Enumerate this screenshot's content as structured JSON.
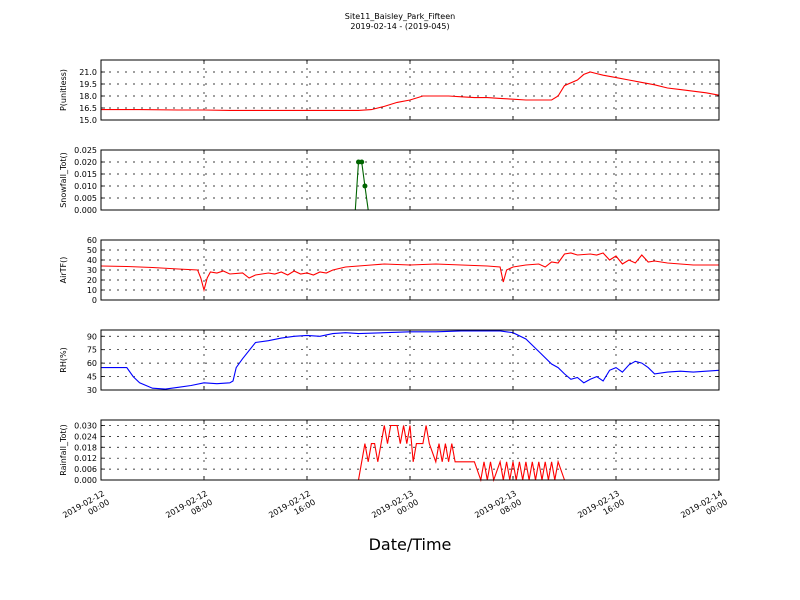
{
  "title": {
    "line1": "Site11_Baisley_Park_Fifteen",
    "line2": "2019-02-14 - (2019-045)"
  },
  "xlabel": "Date/Time",
  "x_ticks": [
    {
      "line1": "2019-02-12",
      "line2": "00:00"
    },
    {
      "line1": "2019-02-12",
      "line2": "08:00"
    },
    {
      "line1": "2019-02-12",
      "line2": "16:00"
    },
    {
      "line1": "2019-02-13",
      "line2": "00:00"
    },
    {
      "line1": "2019-02-13",
      "line2": "08:00"
    },
    {
      "line1": "2019-02-13",
      "line2": "16:00"
    },
    {
      "line1": "2019-02-14",
      "line2": "00:00"
    }
  ],
  "chart_data": [
    {
      "type": "line",
      "ylabel": "P(unitless)",
      "color": "#ff0000",
      "ylim": [
        15.0,
        22.5
      ],
      "yticks": [
        "15.0",
        "16.5",
        "18.0",
        "19.5",
        "21.0"
      ],
      "grid": true,
      "markers": false,
      "series": [
        {
          "values": [
            [
              0,
              16.3
            ],
            [
              3,
              16.3
            ],
            [
              6,
              16.25
            ],
            [
              8,
              16.25
            ],
            [
              10,
              16.2
            ],
            [
              12,
              16.2
            ],
            [
              14,
              16.2
            ],
            [
              16,
              16.2
            ],
            [
              18,
              16.2
            ],
            [
              20,
              16.2
            ],
            [
              21,
              16.3
            ],
            [
              22,
              16.7
            ],
            [
              23,
              17.2
            ],
            [
              24,
              17.5
            ],
            [
              25,
              18.0
            ],
            [
              26,
              18.0
            ],
            [
              27,
              18.0
            ],
            [
              28,
              17.9
            ],
            [
              29,
              17.8
            ],
            [
              30,
              17.8
            ],
            [
              31,
              17.7
            ],
            [
              32,
              17.6
            ],
            [
              33,
              17.5
            ],
            [
              34,
              17.5
            ],
            [
              35,
              17.5
            ],
            [
              35.5,
              18.0
            ],
            [
              36,
              19.3
            ],
            [
              37,
              20.0
            ],
            [
              37.5,
              20.7
            ],
            [
              38,
              21.0
            ],
            [
              38.5,
              20.8
            ],
            [
              39,
              20.6
            ],
            [
              40,
              20.3
            ],
            [
              41,
              20.0
            ],
            [
              42,
              19.7
            ],
            [
              43,
              19.4
            ],
            [
              44,
              19.0
            ],
            [
              45,
              18.8
            ],
            [
              46,
              18.6
            ],
            [
              47,
              18.4
            ],
            [
              48,
              18.1
            ]
          ]
        }
      ]
    },
    {
      "type": "line",
      "ylabel": "Snowfall_Tot()",
      "color": "#006400",
      "ylim": [
        0,
        0.025
      ],
      "yticks": [
        "0.000",
        "0.005",
        "0.010",
        "0.015",
        "0.020",
        "0.025"
      ],
      "grid": true,
      "markers": true,
      "series": [
        {
          "values": [
            [
              0,
              0
            ],
            [
              19.75,
              0
            ],
            [
              20,
              0.02
            ],
            [
              20.25,
              0.02
            ],
            [
              20.5,
              0.01
            ],
            [
              20.75,
              0
            ],
            [
              48,
              0
            ]
          ]
        }
      ]
    },
    {
      "type": "line",
      "ylabel": "AirTF()",
      "color": "#ff0000",
      "ylim": [
        0,
        60
      ],
      "yticks": [
        "0",
        "10",
        "20",
        "30",
        "40",
        "50",
        "60"
      ],
      "grid": true,
      "markers": false,
      "series": [
        {
          "values": [
            [
              0,
              34
            ],
            [
              2,
              33.5
            ],
            [
              4,
              32.5
            ],
            [
              6,
              31
            ],
            [
              7.5,
              30
            ],
            [
              7.75,
              22
            ],
            [
              8,
              10
            ],
            [
              8.25,
              22
            ],
            [
              8.5,
              28
            ],
            [
              9,
              27
            ],
            [
              9.5,
              29
            ],
            [
              10,
              26
            ],
            [
              11,
              27
            ],
            [
              11.5,
              22
            ],
            [
              12,
              25
            ],
            [
              13,
              27
            ],
            [
              13.5,
              26
            ],
            [
              14,
              28
            ],
            [
              14.5,
              25
            ],
            [
              15,
              29
            ],
            [
              15.5,
              26
            ],
            [
              16,
              27
            ],
            [
              16.5,
              25
            ],
            [
              17,
              28
            ],
            [
              17.5,
              27
            ],
            [
              18,
              30
            ],
            [
              19,
              33
            ],
            [
              20,
              34
            ],
            [
              21,
              35
            ],
            [
              22,
              36
            ],
            [
              24,
              35
            ],
            [
              26,
              36
            ],
            [
              28,
              35
            ],
            [
              30,
              34
            ],
            [
              31,
              33
            ],
            [
              31.25,
              18
            ],
            [
              31.5,
              30
            ],
            [
              32,
              33
            ],
            [
              33,
              35
            ],
            [
              34,
              36
            ],
            [
              34.5,
              33
            ],
            [
              35,
              38
            ],
            [
              35.5,
              37
            ],
            [
              36,
              46
            ],
            [
              36.5,
              47
            ],
            [
              37,
              45
            ],
            [
              38,
              46
            ],
            [
              38.5,
              45
            ],
            [
              39,
              47
            ],
            [
              39.5,
              40
            ],
            [
              40,
              44
            ],
            [
              40.5,
              36
            ],
            [
              41,
              40
            ],
            [
              41.5,
              37
            ],
            [
              42,
              45
            ],
            [
              42.5,
              38
            ],
            [
              43,
              39
            ],
            [
              44,
              37
            ],
            [
              45,
              36
            ],
            [
              46,
              35
            ],
            [
              48,
              35
            ]
          ]
        }
      ]
    },
    {
      "type": "line",
      "ylabel": "RH(%)",
      "color": "#0000ff",
      "ylim": [
        30,
        97
      ],
      "yticks": [
        "30",
        "45",
        "60",
        "75",
        "90"
      ],
      "grid": true,
      "markers": false,
      "series": [
        {
          "values": [
            [
              0,
              55
            ],
            [
              1,
              55
            ],
            [
              2,
              55
            ],
            [
              2.5,
              45
            ],
            [
              3,
              38
            ],
            [
              4,
              32
            ],
            [
              5,
              31
            ],
            [
              6,
              33
            ],
            [
              7,
              35
            ],
            [
              8,
              38
            ],
            [
              9,
              37
            ],
            [
              10,
              38
            ],
            [
              10.25,
              40
            ],
            [
              10.5,
              55
            ],
            [
              11,
              65
            ],
            [
              12,
              83
            ],
            [
              13,
              85
            ],
            [
              14,
              88
            ],
            [
              15,
              90
            ],
            [
              16,
              91
            ],
            [
              17,
              90
            ],
            [
              18,
              93
            ],
            [
              19,
              94
            ],
            [
              20,
              93
            ],
            [
              22,
              94
            ],
            [
              24,
              95
            ],
            [
              26,
              95
            ],
            [
              28,
              96
            ],
            [
              30,
              96
            ],
            [
              31,
              96
            ],
            [
              32,
              94
            ],
            [
              33,
              87
            ],
            [
              34,
              73
            ],
            [
              35,
              59
            ],
            [
              35.5,
              55
            ],
            [
              36,
              48
            ],
            [
              36.5,
              42
            ],
            [
              37,
              44
            ],
            [
              37.5,
              38
            ],
            [
              38,
              42
            ],
            [
              38.5,
              45
            ],
            [
              39,
              40
            ],
            [
              39.5,
              52
            ],
            [
              40,
              55
            ],
            [
              40.5,
              50
            ],
            [
              41,
              58
            ],
            [
              41.5,
              62
            ],
            [
              42,
              60
            ],
            [
              42.5,
              55
            ],
            [
              43,
              48
            ],
            [
              44,
              50
            ],
            [
              45,
              51
            ],
            [
              46,
              50
            ],
            [
              47,
              51
            ],
            [
              48,
              52
            ]
          ]
        }
      ]
    },
    {
      "type": "line",
      "ylabel": "Rainfall_Tot()",
      "color": "#ff0000",
      "ylim": [
        0,
        0.033
      ],
      "yticks": [
        "0.000",
        "0.006",
        "0.012",
        "0.018",
        "0.024",
        "0.030"
      ],
      "grid": true,
      "markers": false,
      "series": [
        {
          "values": [
            [
              0,
              0
            ],
            [
              20,
              0
            ],
            [
              20.5,
              0.02
            ],
            [
              20.75,
              0.01
            ],
            [
              21,
              0.02
            ],
            [
              21.25,
              0.02
            ],
            [
              21.5,
              0.01
            ],
            [
              22,
              0.03
            ],
            [
              22.25,
              0.02
            ],
            [
              22.5,
              0.03
            ],
            [
              23,
              0.03
            ],
            [
              23.25,
              0.02
            ],
            [
              23.5,
              0.03
            ],
            [
              23.75,
              0.02
            ],
            [
              24,
              0.03
            ],
            [
              24.25,
              0.01
            ],
            [
              24.5,
              0.02
            ],
            [
              25,
              0.02
            ],
            [
              25.25,
              0.03
            ],
            [
              25.5,
              0.02
            ],
            [
              26,
              0.01
            ],
            [
              26.25,
              0.02
            ],
            [
              26.5,
              0.01
            ],
            [
              26.75,
              0.02
            ],
            [
              27,
              0.01
            ],
            [
              27.25,
              0.02
            ],
            [
              27.5,
              0.01
            ],
            [
              28,
              0.01
            ],
            [
              29,
              0.01
            ],
            [
              29.5,
              0
            ],
            [
              29.75,
              0.01
            ],
            [
              30,
              0
            ],
            [
              30.25,
              0.01
            ],
            [
              30.5,
              0
            ],
            [
              31,
              0.01
            ],
            [
              31.25,
              0
            ],
            [
              31.5,
              0.01
            ],
            [
              31.75,
              0
            ],
            [
              32,
              0.01
            ],
            [
              32.25,
              0
            ],
            [
              32.5,
              0.01
            ],
            [
              32.75,
              0
            ],
            [
              33,
              0.01
            ],
            [
              33.25,
              0
            ],
            [
              33.5,
              0.01
            ],
            [
              33.75,
              0
            ],
            [
              34,
              0.01
            ],
            [
              34.25,
              0
            ],
            [
              34.5,
              0.01
            ],
            [
              34.75,
              0
            ],
            [
              35,
              0.01
            ],
            [
              35.25,
              0
            ],
            [
              35.5,
              0.01
            ],
            [
              36,
              0
            ],
            [
              48,
              0
            ]
          ]
        }
      ]
    }
  ]
}
